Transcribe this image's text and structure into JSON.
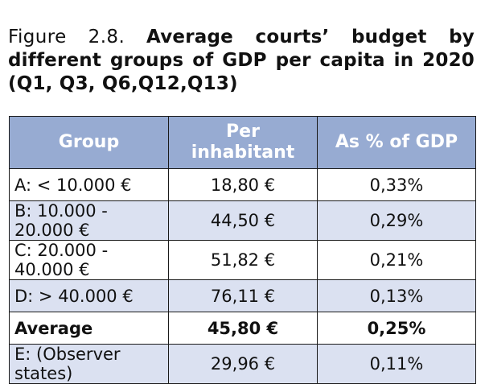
{
  "caption": {
    "label": "Figure 2.8.",
    "title": "Average courts’ budget by different groups of GDP per capita in 2020 (Q1, Q3, Q6,Q12,Q13)"
  },
  "table": {
    "headers": {
      "group": "Group",
      "per_inhabitant": "Per inhabitant",
      "pct_gdp": "As % of GDP"
    },
    "rows": [
      {
        "group": "A: < 10.000 €",
        "per_inhabitant": "18,80 €",
        "pct_gdp": "0,33%"
      },
      {
        "group": "B: 10.000 - 20.000 €",
        "per_inhabitant": "44,50 €",
        "pct_gdp": "0,29%"
      },
      {
        "group": "C: 20.000 - 40.000 €",
        "per_inhabitant": "51,82 €",
        "pct_gdp": "0,21%"
      },
      {
        "group": "D: > 40.000 €",
        "per_inhabitant": "76,11 €",
        "pct_gdp": "0,13%"
      },
      {
        "group": "Average",
        "per_inhabitant": "45,80 €",
        "pct_gdp": "0,25%"
      },
      {
        "group": "E: (Observer states)",
        "per_inhabitant": "29,96 €",
        "pct_gdp": "0,11%"
      }
    ]
  },
  "colors": {
    "header_bg": "#97abd2",
    "shaded_row_bg": "#dbe1f1",
    "border": "#1a1a1a"
  }
}
